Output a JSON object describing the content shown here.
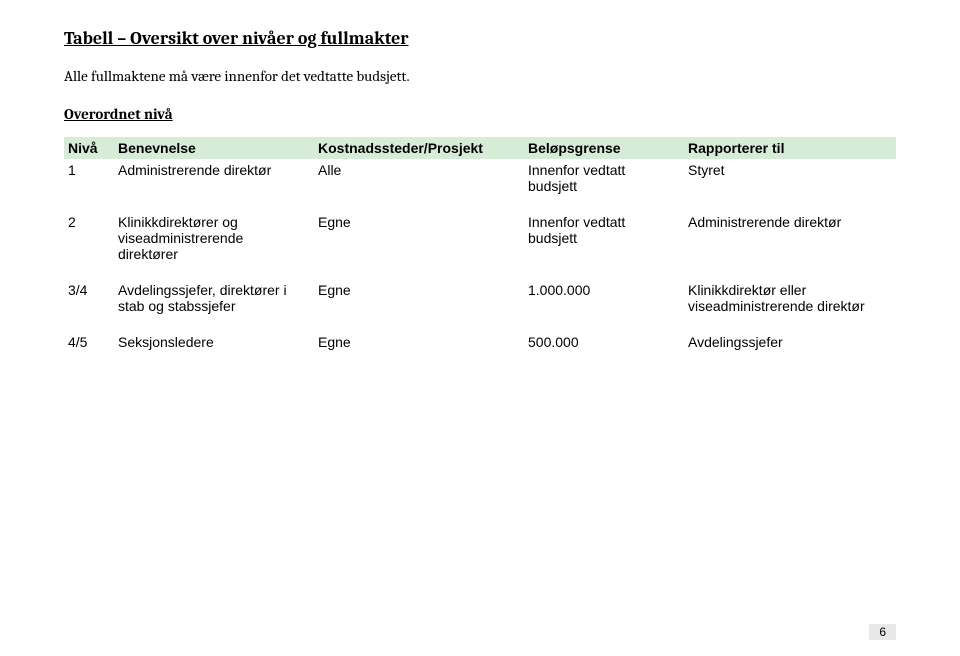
{
  "title": "Tabell – Oversikt over nivåer og fullmakter",
  "subtitle": "Alle fullmaktene må være innenfor det vedtatte budsjett.",
  "section_heading": "Overordnet nivå",
  "table": {
    "columns": {
      "nivaa": "Nivå",
      "benevnelse": "Benevnelse",
      "kostnadssteder": "Kostnadssteder/Prosjekt",
      "belopsgrense": "Beløpsgrense",
      "rapporterer": "Rapporterer til"
    },
    "rows": [
      {
        "nivaa": "1",
        "benevnelse": "Administrerende direktør",
        "kostnadssteder": "Alle",
        "belopsgrense": "Innenfor vedtatt budsjett",
        "rapporterer": "Styret"
      },
      {
        "nivaa": "2",
        "benevnelse": "Klinikkdirektører og viseadministrerende direktører",
        "kostnadssteder": "Egne",
        "belopsgrense": "Innenfor vedtatt budsjett",
        "rapporterer": "Administrerende direktør"
      },
      {
        "nivaa": "3/4",
        "benevnelse": "Avdelingssjefer, direktører i stab og stabssjefer",
        "kostnadssteder": "Egne",
        "belopsgrense": "1.000.000",
        "rapporterer": "Klinikkdirektør eller viseadministrerende direktør"
      },
      {
        "nivaa": "4/5",
        "benevnelse": "Seksjonsledere",
        "kostnadssteder": "Egne",
        "belopsgrense": "500.000",
        "rapporterer": "Avdelingssjefer"
      }
    ]
  },
  "page_number": "6",
  "colors": {
    "header_bg": "#d7ecd7",
    "page_bg": "#ffffff",
    "text": "#000000",
    "pagenum_bg": "#e8e8e8"
  }
}
